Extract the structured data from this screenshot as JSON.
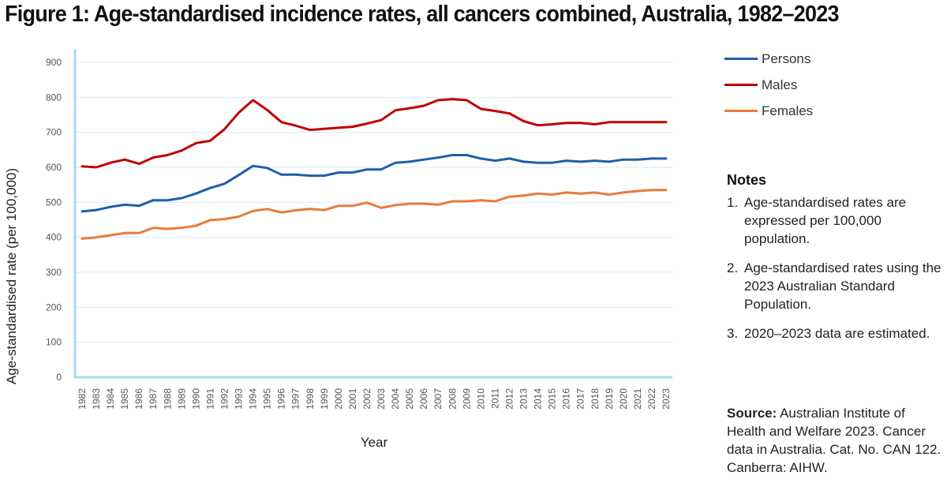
{
  "title": "Figure 1: Age-standardised incidence rates, all cancers combined, Australia, 1982–2023",
  "chart_data": {
    "type": "line",
    "xlabel": "Year",
    "ylabel": "Age-standardised rate (per 100,000)",
    "ylim": [
      0,
      900
    ],
    "yticks": [
      0,
      100,
      200,
      300,
      400,
      500,
      600,
      700,
      800,
      900
    ],
    "grid": true,
    "legend_position": "right",
    "x": [
      "1982",
      "1983",
      "1984",
      "1985",
      "1986",
      "1987",
      "1988",
      "1989",
      "1990",
      "1991",
      "1992",
      "1993",
      "1994",
      "1995",
      "1996",
      "1997",
      "1998",
      "1999",
      "2000",
      "2001",
      "2002",
      "2003",
      "2004",
      "2005",
      "2006",
      "2007",
      "2008",
      "2009",
      "2010",
      "2011",
      "2012",
      "2013",
      "2014",
      "2015",
      "2016",
      "2017",
      "2018",
      "2019",
      "2020",
      "2021",
      "2022",
      "2023"
    ],
    "series": [
      {
        "name": "Persons",
        "color": "#1f5fa8",
        "values": [
          474,
          478,
          487,
          493,
          490,
          506,
          506,
          512,
          525,
          541,
          553,
          578,
          604,
          598,
          579,
          579,
          576,
          576,
          585,
          585,
          594,
          594,
          613,
          616,
          622,
          628,
          635,
          635,
          625,
          619,
          625,
          616,
          613,
          613,
          619,
          616,
          619,
          616,
          622,
          622,
          625,
          625
        ]
      },
      {
        "name": "Males",
        "color": "#c00000",
        "values": [
          603,
          600,
          613,
          622,
          610,
          628,
          635,
          648,
          669,
          676,
          709,
          756,
          792,
          764,
          729,
          719,
          707,
          710,
          713,
          716,
          725,
          735,
          763,
          769,
          776,
          792,
          795,
          792,
          767,
          761,
          754,
          732,
          720,
          723,
          727,
          727,
          723,
          729,
          729,
          729,
          729,
          729
        ]
      },
      {
        "name": "Females",
        "color": "#e87b3a",
        "values": [
          396,
          400,
          406,
          412,
          412,
          427,
          424,
          427,
          433,
          449,
          452,
          459,
          475,
          481,
          471,
          477,
          481,
          478,
          490,
          490,
          499,
          484,
          492,
          496,
          496,
          493,
          503,
          503,
          506,
          503,
          516,
          519,
          525,
          522,
          528,
          525,
          528,
          522,
          528,
          532,
          535,
          535
        ]
      }
    ]
  },
  "legend": {
    "items": [
      {
        "label": "Persons",
        "color": "#1f5fa8"
      },
      {
        "label": "Males",
        "color": "#c00000"
      },
      {
        "label": "Females",
        "color": "#e87b3a"
      }
    ]
  },
  "notes": {
    "heading": "Notes",
    "items": [
      {
        "num": "1.",
        "text": "Age-standardised rates are expressed per 100,000 population."
      },
      {
        "num": "2.",
        "text": "Age-standardised rates using the 2023 Australian Standard Population."
      },
      {
        "num": "3.",
        "text": "2020–2023 data are estimated."
      }
    ]
  },
  "source": {
    "label": "Source:",
    "text": "Australian Institute of Health and Welfare 2023. Cancer data in Australia. Cat. No. CAN 122. Canberra: AIHW."
  },
  "colors": {
    "axis": "#a9d8f0",
    "grid": "#d2ebf8",
    "tick_text": "#555555"
  }
}
